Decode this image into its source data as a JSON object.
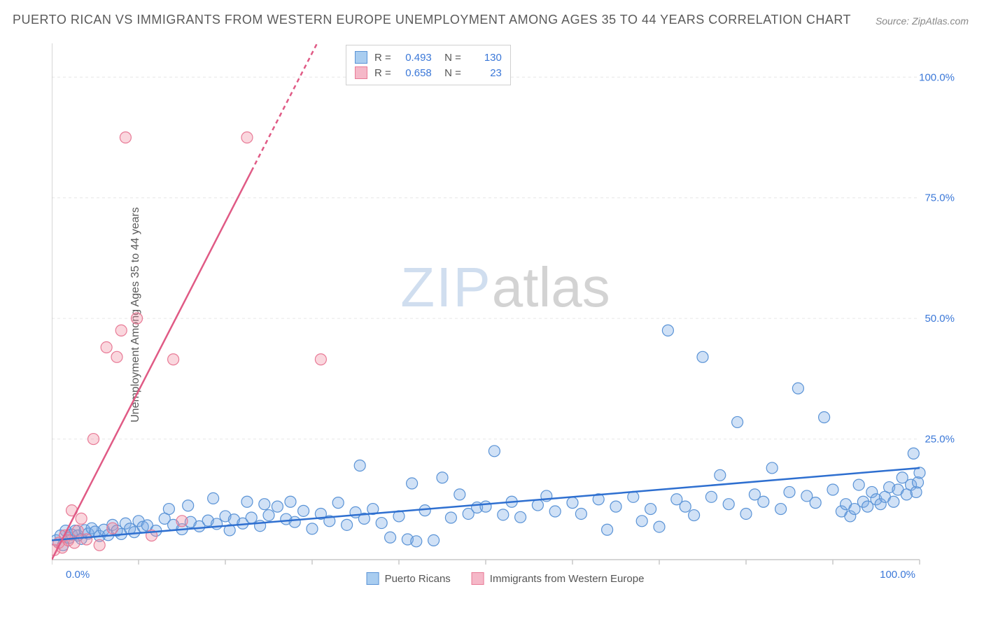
{
  "title": "PUERTO RICAN VS IMMIGRANTS FROM WESTERN EUROPE UNEMPLOYMENT AMONG AGES 35 TO 44 YEARS CORRELATION CHART",
  "source": "Source: ZipAtlas.com",
  "y_axis_label": "Unemployment Among Ages 35 to 44 years",
  "watermark_a": "ZIP",
  "watermark_b": "atlas",
  "chart": {
    "type": "scatter",
    "xlim": [
      0,
      100
    ],
    "ylim": [
      0,
      107
    ],
    "x_ticks": [
      0,
      10,
      20,
      30,
      40,
      50,
      60,
      70,
      80,
      90,
      100
    ],
    "x_tick_labels_shown": {
      "0": "0.0%",
      "100": "100.0%"
    },
    "y_ticks": [
      25,
      50,
      75,
      100
    ],
    "y_tick_labels": {
      "25": "25.0%",
      "50": "50.0%",
      "75": "75.0%",
      "100": "100.0%"
    },
    "background_color": "#ffffff",
    "grid_color": "#e6e6e6",
    "axis_color": "#c8c8c8",
    "tick_label_color": "#3b78d8",
    "marker_radius": 8,
    "marker_stroke_width": 1.2,
    "series": [
      {
        "name": "Puerto Ricans",
        "fill": "rgba(120,170,230,0.35)",
        "stroke": "#5a93d6",
        "swatch_fill": "#a9cdf0",
        "swatch_border": "#5a93d6",
        "R": 0.493,
        "N": 130,
        "trend": {
          "slope": 0.15,
          "intercept": 4.0,
          "color": "#2e6fd0",
          "width": 2.5,
          "dash": ""
        },
        "points": [
          [
            0.5,
            4
          ],
          [
            1,
            5
          ],
          [
            1.3,
            3
          ],
          [
            1.6,
            6
          ],
          [
            2,
            4.5
          ],
          [
            2.3,
            5.2
          ],
          [
            2.7,
            6
          ],
          [
            3,
            5
          ],
          [
            3.4,
            4.3
          ],
          [
            3.8,
            6.1
          ],
          [
            4.2,
            5.4
          ],
          [
            4.6,
            6.5
          ],
          [
            5,
            5.8
          ],
          [
            5.5,
            4.9
          ],
          [
            6,
            6.2
          ],
          [
            6.5,
            5.1
          ],
          [
            7,
            7.2
          ],
          [
            7.5,
            6.0
          ],
          [
            8,
            5.3
          ],
          [
            8.5,
            7.5
          ],
          [
            9,
            6.4
          ],
          [
            9.5,
            5.7
          ],
          [
            10,
            8.0
          ],
          [
            10.5,
            6.8
          ],
          [
            11,
            7.1
          ],
          [
            12,
            6.0
          ],
          [
            13,
            8.5
          ],
          [
            13.5,
            10.5
          ],
          [
            14,
            7.2
          ],
          [
            15,
            6.3
          ],
          [
            15.7,
            11.2
          ],
          [
            16,
            7.8
          ],
          [
            17,
            6.9
          ],
          [
            18,
            8.1
          ],
          [
            18.6,
            12.7
          ],
          [
            19,
            7.4
          ],
          [
            20,
            9.0
          ],
          [
            20.5,
            6.1
          ],
          [
            21,
            8.3
          ],
          [
            22,
            7.5
          ],
          [
            22.5,
            12.0
          ],
          [
            23,
            8.7
          ],
          [
            24,
            7.0
          ],
          [
            24.5,
            11.5
          ],
          [
            25,
            9.2
          ],
          [
            26,
            11.0
          ],
          [
            27,
            8.4
          ],
          [
            27.5,
            12.0
          ],
          [
            28,
            7.8
          ],
          [
            29,
            10.1
          ],
          [
            30,
            6.4
          ],
          [
            31,
            9.5
          ],
          [
            32,
            8.0
          ],
          [
            33,
            11.8
          ],
          [
            34,
            7.2
          ],
          [
            35,
            9.8
          ],
          [
            35.5,
            19.5
          ],
          [
            36,
            8.5
          ],
          [
            37,
            10.5
          ],
          [
            38,
            7.6
          ],
          [
            39,
            4.6
          ],
          [
            40,
            9.0
          ],
          [
            41,
            4.2
          ],
          [
            41.5,
            15.8
          ],
          [
            42,
            3.8
          ],
          [
            43,
            10.2
          ],
          [
            44,
            4.0
          ],
          [
            45,
            17.0
          ],
          [
            46,
            8.7
          ],
          [
            47,
            13.5
          ],
          [
            48,
            9.5
          ],
          [
            49,
            10.8
          ],
          [
            50,
            11.0
          ],
          [
            51,
            22.5
          ],
          [
            52,
            9.3
          ],
          [
            53,
            12.0
          ],
          [
            54,
            8.8
          ],
          [
            56,
            11.3
          ],
          [
            57,
            13.2
          ],
          [
            58,
            10.0
          ],
          [
            60,
            11.8
          ],
          [
            61,
            9.5
          ],
          [
            63,
            12.5
          ],
          [
            64,
            6.2
          ],
          [
            65,
            11.0
          ],
          [
            67,
            13.0
          ],
          [
            68,
            8.0
          ],
          [
            69,
            10.5
          ],
          [
            70,
            6.8
          ],
          [
            71,
            47.5
          ],
          [
            72,
            12.5
          ],
          [
            73,
            11.0
          ],
          [
            74,
            9.2
          ],
          [
            75,
            42.0
          ],
          [
            76,
            13.0
          ],
          [
            77,
            17.5
          ],
          [
            78,
            11.5
          ],
          [
            79,
            28.5
          ],
          [
            80,
            9.5
          ],
          [
            81,
            13.5
          ],
          [
            82,
            12.0
          ],
          [
            83,
            19.0
          ],
          [
            84,
            10.5
          ],
          [
            85,
            14.0
          ],
          [
            86,
            35.5
          ],
          [
            87,
            13.2
          ],
          [
            88,
            11.8
          ],
          [
            89,
            29.5
          ],
          [
            90,
            14.5
          ],
          [
            91,
            10.0
          ],
          [
            91.5,
            11.5
          ],
          [
            92,
            9.0
          ],
          [
            92.5,
            10.5
          ],
          [
            93,
            15.5
          ],
          [
            93.5,
            12.0
          ],
          [
            94,
            11.0
          ],
          [
            94.5,
            14.0
          ],
          [
            95,
            12.5
          ],
          [
            95.5,
            11.5
          ],
          [
            96,
            13.0
          ],
          [
            96.5,
            15.0
          ],
          [
            97,
            12.0
          ],
          [
            97.5,
            14.5
          ],
          [
            98,
            17.0
          ],
          [
            98.5,
            13.5
          ],
          [
            99,
            15.5
          ],
          [
            99.3,
            22.0
          ],
          [
            99.6,
            14.0
          ],
          [
            99.8,
            16.0
          ],
          [
            100,
            18.0
          ]
        ]
      },
      {
        "name": "Immigrants from Western Europe",
        "fill": "rgba(240,140,160,0.35)",
        "stroke": "#e87a96",
        "swatch_fill": "#f5b8c8",
        "swatch_border": "#e87a96",
        "R": 0.658,
        "N": 23,
        "trend": {
          "slope": 3.5,
          "intercept": 0,
          "color": "#e05a85",
          "width": 2.5,
          "dash_after_x": 23
        },
        "points": [
          [
            0.3,
            2.0
          ],
          [
            0.8,
            3.5
          ],
          [
            1.2,
            2.5
          ],
          [
            1.5,
            5.0
          ],
          [
            1.9,
            4.0
          ],
          [
            2.3,
            10.2
          ],
          [
            2.6,
            3.5
          ],
          [
            3.0,
            6.0
          ],
          [
            3.4,
            8.5
          ],
          [
            4.0,
            4.2
          ],
          [
            4.8,
            25.0
          ],
          [
            5.5,
            3.0
          ],
          [
            6.3,
            44.0
          ],
          [
            7.0,
            6.5
          ],
          [
            7.5,
            42.0
          ],
          [
            8.0,
            47.5
          ],
          [
            8.5,
            87.5
          ],
          [
            9.8,
            50.0
          ],
          [
            11.5,
            5.0
          ],
          [
            14.0,
            41.5
          ],
          [
            22.5,
            87.5
          ],
          [
            31.0,
            41.5
          ],
          [
            15.0,
            8.0
          ]
        ]
      }
    ]
  },
  "legend_bottom": [
    {
      "label": "Puerto Ricans",
      "series": 0
    },
    {
      "label": "Immigrants from Western Europe",
      "series": 1
    }
  ]
}
